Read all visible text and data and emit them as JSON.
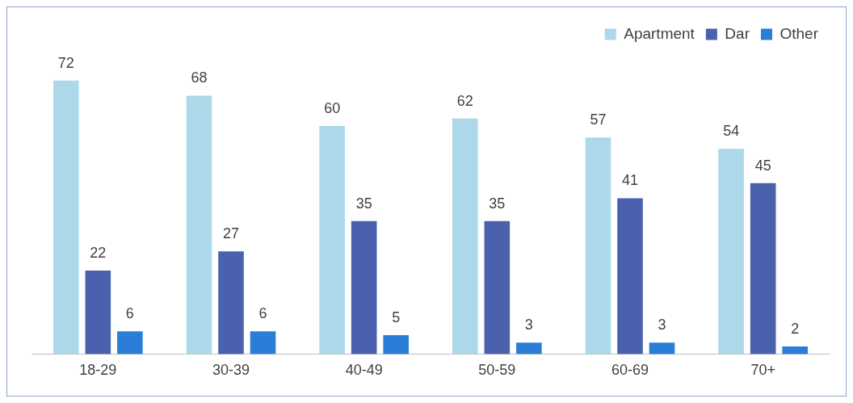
{
  "chart_data": {
    "type": "bar",
    "categories": [
      "18-29",
      "30-39",
      "40-49",
      "50-59",
      "60-69",
      "70+"
    ],
    "series": [
      {
        "name": "Apartment",
        "color": "#add8ea",
        "values": [
          72,
          68,
          60,
          62,
          57,
          54
        ]
      },
      {
        "name": "Dar",
        "color": "#4a62ad",
        "values": [
          22,
          27,
          35,
          35,
          41,
          45
        ]
      },
      {
        "name": "Other",
        "color": "#2a7ed8",
        "values": [
          6,
          6,
          5,
          3,
          3,
          2
        ]
      }
    ],
    "data_labels": true,
    "legend": "top right",
    "grid": false
  }
}
